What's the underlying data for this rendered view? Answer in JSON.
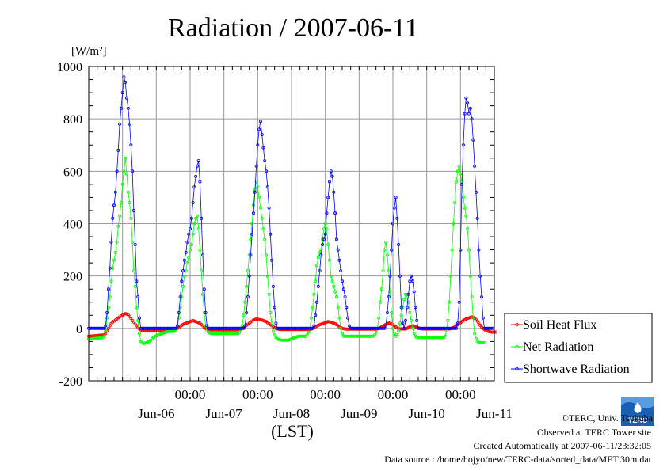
{
  "chart_data": {
    "type": "line",
    "title": "Radiation / 2007-06-11",
    "ylabel_unit": "[W/m²]",
    "xlabel": "(LST)",
    "ylim": [
      -200,
      1000
    ],
    "yticks": [
      -200,
      0,
      200,
      400,
      600,
      800,
      1000
    ],
    "xlim": [
      "2007-06-05T12:00",
      "2007-06-11T12:00"
    ],
    "x_midnight_labels": [
      "00:00",
      "00:00",
      "00:00",
      "00:00",
      "00:00"
    ],
    "x_day_labels": [
      "Jun-06",
      "Jun-07",
      "Jun-08",
      "Jun-09",
      "Jun-10",
      "Jun-11"
    ],
    "grid": true,
    "legend_position": "right",
    "x_step_minutes": 30,
    "series": [
      {
        "name": "Soil Heat Flux",
        "color": "#ff0000",
        "start": "2007-06-05T12:00",
        "values": [
          -30,
          -30,
          -29,
          -29,
          -28,
          -28,
          -27,
          -27,
          -26,
          -26,
          -25,
          -25,
          -20,
          -10,
          0,
          10,
          18,
          24,
          28,
          32,
          36,
          40,
          44,
          48,
          51,
          54,
          56,
          55,
          52,
          46,
          38,
          30,
          24,
          16,
          10,
          4,
          -2,
          -6,
          -8,
          -10,
          -10,
          -10,
          -10,
          -10,
          -10,
          -10,
          -10,
          -10,
          -10,
          -10,
          -10,
          -10,
          -10,
          -10,
          -10,
          -10,
          -10,
          -10,
          -10,
          -10,
          -10,
          -8,
          -5,
          0,
          4,
          8,
          12,
          15,
          18,
          20,
          22,
          24,
          26,
          28,
          30,
          28,
          26,
          24,
          22,
          20,
          15,
          10,
          5,
          0,
          -2,
          -4,
          -5,
          -6,
          -6,
          -6,
          -6,
          -6,
          -6,
          -6,
          -6,
          -6,
          -6,
          -6,
          -6,
          -6,
          -6,
          -6,
          -6,
          -6,
          -6,
          -6,
          -6,
          -4,
          -2,
          0,
          4,
          8,
          12,
          16,
          20,
          24,
          28,
          32,
          34,
          36,
          35,
          34,
          33,
          32,
          30,
          28,
          26,
          22,
          18,
          14,
          10,
          6,
          3,
          0,
          -2,
          -3,
          -4,
          -4,
          -4,
          -4,
          -4,
          -4,
          -4,
          -4,
          -4,
          -4,
          -4,
          -4,
          -4,
          -4,
          -4,
          -4,
          -4,
          -4,
          -4,
          -4,
          -4,
          -4,
          -3,
          0,
          3,
          6,
          9,
          12,
          14,
          16,
          18,
          20,
          22,
          24,
          26,
          25,
          24,
          22,
          20,
          18,
          14,
          10,
          6,
          3,
          0,
          -1,
          -2,
          -3,
          -3,
          -3,
          -3,
          -3,
          -3,
          -3,
          -3,
          -3,
          -3,
          -3,
          -3,
          -3,
          -3,
          -3,
          -3,
          -3,
          -3,
          -3,
          -3,
          -3,
          -3,
          -2,
          0,
          3,
          6,
          9,
          12,
          15,
          18,
          20,
          22,
          18,
          14,
          10,
          6,
          2,
          0,
          -2,
          -2,
          -2,
          -2,
          -2,
          0,
          3,
          6,
          8,
          10,
          8,
          6,
          4,
          2,
          0,
          -1,
          -2,
          -2,
          -2,
          -2,
          -2,
          -2,
          -2,
          -2,
          -2,
          -2,
          -2,
          -2,
          -2,
          -2,
          -2,
          -2,
          -2,
          -2,
          -2,
          -2,
          -1,
          0,
          3,
          6,
          10,
          14,
          18,
          22,
          26,
          30,
          33,
          36,
          38,
          40,
          42,
          44,
          42,
          38,
          34,
          28,
          20,
          12,
          5,
          0,
          -4,
          -8,
          -10,
          -12,
          -13,
          -14,
          -14,
          -14,
          -14
        ]
      },
      {
        "name": "Net Radiation",
        "color": "#00ff00",
        "start": "2007-06-05T12:00",
        "values": [
          -40,
          -40,
          -40,
          -39,
          -39,
          -38,
          -38,
          -37,
          -36,
          -36,
          -35,
          -30,
          -10,
          40,
          80,
          120,
          180,
          230,
          260,
          290,
          330,
          390,
          430,
          480,
          550,
          600,
          650,
          590,
          520,
          480,
          420,
          330,
          220,
          160,
          80,
          30,
          -20,
          -50,
          -55,
          -58,
          -56,
          -55,
          -52,
          -50,
          -45,
          -40,
          -35,
          -30,
          -28,
          -26,
          -24,
          -22,
          -20,
          -18,
          -16,
          -14,
          -12,
          -12,
          -12,
          -12,
          -12,
          -10,
          -5,
          10,
          40,
          80,
          120,
          160,
          200,
          220,
          250,
          270,
          300,
          320,
          360,
          400,
          420,
          430,
          380,
          300,
          220,
          130,
          60,
          10,
          -10,
          -15,
          -18,
          -20,
          -20,
          -20,
          -20,
          -20,
          -20,
          -20,
          -20,
          -20,
          -20,
          -20,
          -20,
          -20,
          -20,
          -20,
          -20,
          -20,
          -20,
          -20,
          -20,
          -15,
          -5,
          10,
          50,
          100,
          160,
          220,
          280,
          340,
          400,
          470,
          530,
          560,
          540,
          500,
          460,
          420,
          380,
          340,
          280,
          200,
          130,
          60,
          20,
          -10,
          -25,
          -35,
          -40,
          -42,
          -44,
          -45,
          -45,
          -45,
          -45,
          -45,
          -44,
          -42,
          -40,
          -38,
          -36,
          -34,
          -32,
          -30,
          -30,
          -30,
          -30,
          -30,
          -30,
          -25,
          -15,
          0,
          40,
          80,
          130,
          180,
          240,
          270,
          290,
          300,
          340,
          380,
          400,
          380,
          320,
          260,
          200,
          180,
          160,
          140,
          120,
          80,
          40,
          0,
          -20,
          -30,
          -30,
          -30,
          -30,
          -30,
          -30,
          -30,
          -30,
          -30,
          -30,
          -30,
          -30,
          -30,
          -30,
          -30,
          -30,
          -30,
          -30,
          -30,
          -30,
          -30,
          -30,
          -25,
          -15,
          0,
          40,
          100,
          150,
          220,
          300,
          330,
          280,
          220,
          140,
          60,
          0,
          -20,
          -30,
          -25,
          -10,
          20,
          50,
          80,
          110,
          130,
          120,
          100,
          60,
          30,
          0,
          -20,
          -30,
          -35,
          -35,
          -35,
          -35,
          -35,
          -35,
          -35,
          -35,
          -35,
          -35,
          -35,
          -35,
          -35,
          -35,
          -35,
          -35,
          -35,
          -35,
          -35,
          -35,
          -30,
          -10,
          30,
          100,
          200,
          300,
          400,
          480,
          560,
          600,
          620,
          590,
          560,
          500,
          460,
          430,
          380,
          300,
          200,
          120,
          40,
          -20,
          -40,
          -50,
          -55,
          -55,
          -55,
          -55,
          -55
        ]
      },
      {
        "name": "Shortwave Radiation",
        "color": "#0000ff",
        "start": "2007-06-05T12:00",
        "values": [
          0,
          0,
          0,
          0,
          0,
          0,
          0,
          0,
          0,
          0,
          0,
          0,
          10,
          60,
          150,
          230,
          330,
          420,
          470,
          520,
          600,
          680,
          780,
          840,
          900,
          960,
          940,
          880,
          840,
          780,
          700,
          600,
          450,
          320,
          180,
          120,
          40,
          0,
          0,
          0,
          0,
          0,
          0,
          0,
          0,
          0,
          0,
          0,
          0,
          0,
          0,
          0,
          0,
          0,
          0,
          0,
          0,
          0,
          0,
          0,
          0,
          0,
          0,
          10,
          60,
          120,
          180,
          220,
          260,
          290,
          330,
          360,
          380,
          420,
          480,
          540,
          580,
          620,
          640,
          560,
          420,
          280,
          150,
          60,
          10,
          0,
          0,
          0,
          0,
          0,
          0,
          0,
          0,
          0,
          0,
          0,
          0,
          0,
          0,
          0,
          0,
          0,
          0,
          0,
          0,
          0,
          0,
          0,
          0,
          0,
          0,
          10,
          60,
          120,
          200,
          280,
          360,
          440,
          520,
          620,
          700,
          760,
          790,
          740,
          690,
          640,
          600,
          540,
          460,
          360,
          260,
          160,
          80,
          20,
          0,
          0,
          0,
          0,
          0,
          0,
          0,
          0,
          0,
          0,
          0,
          0,
          0,
          0,
          0,
          0,
          0,
          0,
          0,
          0,
          0,
          0,
          0,
          0,
          0,
          0,
          10,
          50,
          100,
          160,
          220,
          280,
          320,
          340,
          360,
          440,
          500,
          560,
          600,
          580,
          520,
          440,
          340,
          300,
          260,
          220,
          180,
          150,
          120,
          80,
          40,
          10,
          0,
          0,
          0,
          0,
          0,
          0,
          0,
          0,
          0,
          0,
          0,
          0,
          0,
          0,
          0,
          0,
          0,
          0,
          0,
          0,
          0,
          0,
          0,
          0,
          0,
          10,
          60,
          120,
          200,
          300,
          400,
          460,
          500,
          420,
          320,
          200,
          80,
          20,
          0,
          30,
          80,
          130,
          180,
          200,
          180,
          140,
          80,
          30,
          0,
          0,
          0,
          0,
          0,
          0,
          0,
          0,
          0,
          0,
          0,
          0,
          0,
          0,
          0,
          0,
          0,
          0,
          0,
          0,
          0,
          0,
          0,
          0,
          0,
          0,
          0,
          0,
          20,
          100,
          300,
          550,
          700,
          820,
          880,
          860,
          820,
          840,
          800,
          720,
          620,
          520,
          420,
          300,
          200,
          120,
          40,
          0,
          0,
          0,
          0,
          0,
          0,
          0
        ]
      }
    ]
  },
  "footer": {
    "copyright": "©TERC, Univ. Tsukuba",
    "observed": "Observed at TERC Tower site",
    "created": "Created Automatically at 2007-06-11/23:32:05",
    "source": "Data source : /home/hojyo/new/TERC-data/sorted_data/MET.30m.dat"
  },
  "logo": {
    "icon": "terc-logo-icon",
    "text": "TERC",
    "color": "#1a5fb4"
  }
}
